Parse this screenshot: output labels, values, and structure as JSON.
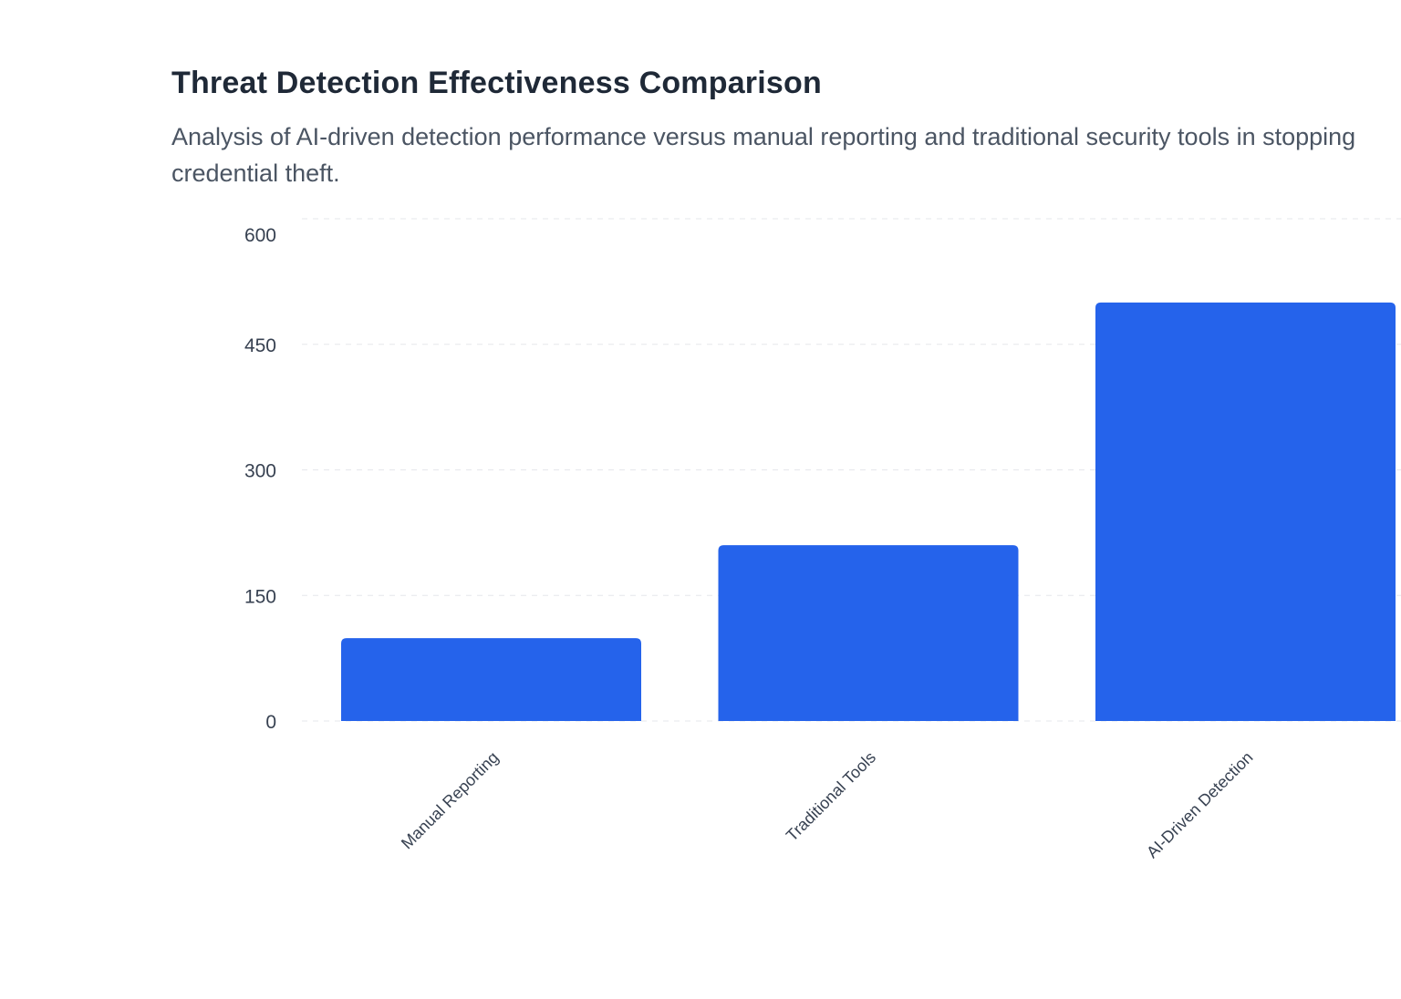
{
  "chart_data": {
    "type": "bar",
    "title": "Threat Detection Effectiveness Comparison",
    "subtitle": "Analysis of AI-driven detection performance versus manual reporting and traditional security tools in stopping credential theft.",
    "categories": [
      "Manual Reporting",
      "Traditional Tools",
      "AI-Driven Detection"
    ],
    "values": [
      99,
      210,
      500
    ],
    "xlabel": "",
    "ylabel": "",
    "ylim": [
      0,
      600
    ],
    "yticks": [
      "0",
      "150",
      "300",
      "450",
      "600"
    ],
    "grid": true,
    "legend": "none",
    "bar_color": "#2563eb",
    "grid_color": "#e5e7eb"
  }
}
